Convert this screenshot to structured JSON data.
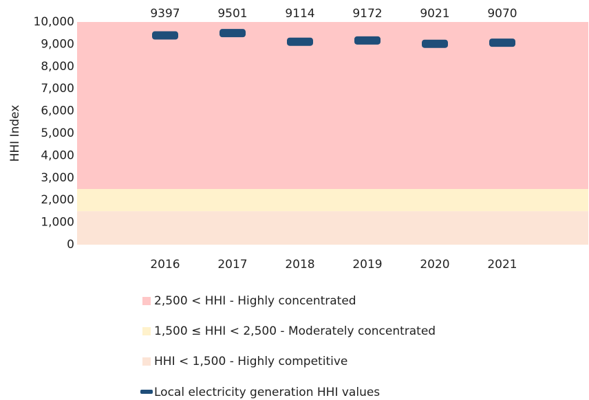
{
  "chart_data": {
    "type": "dash",
    "y_label": "HHI Index",
    "categories": [
      "2016",
      "2017",
      "2018",
      "2019",
      "2020",
      "2021"
    ],
    "ylim": [
      0,
      10000
    ],
    "yticks": [
      0,
      {
        "value": 1000,
        "label": "1,000"
      },
      {
        "value": 2000,
        "label": "2,000"
      },
      {
        "value": 3000,
        "label": "3,000"
      },
      {
        "value": 4000,
        "label": "4,000"
      },
      {
        "value": 5000,
        "label": "5,000"
      },
      {
        "value": 6000,
        "label": "6,000"
      },
      {
        "value": 7000,
        "label": "7,000"
      },
      {
        "value": 8000,
        "label": "8,000"
      },
      {
        "value": 9000,
        "label": "9,000"
      },
      {
        "value": 10000,
        "label": "10,000"
      }
    ],
    "bands": [
      {
        "name": "2,500 < HHI - Highly concentrated",
        "range": [
          2500,
          10000
        ],
        "color": "#ffc7c7"
      },
      {
        "name": "1,500 ≤ HHI < 2,500 - Moderately concentrated",
        "range": [
          1500,
          2500
        ],
        "color": "#fff2cc"
      },
      {
        "name": "HHI < 1,500 - Highly competitive",
        "range": [
          0,
          1500
        ],
        "color": "#fce4d6"
      }
    ],
    "series": [
      {
        "name": "Local electricity generation HHI values",
        "color": "#1f4e79",
        "values": [
          9397,
          9501,
          9114,
          9172,
          9021,
          9070
        ]
      }
    ]
  }
}
